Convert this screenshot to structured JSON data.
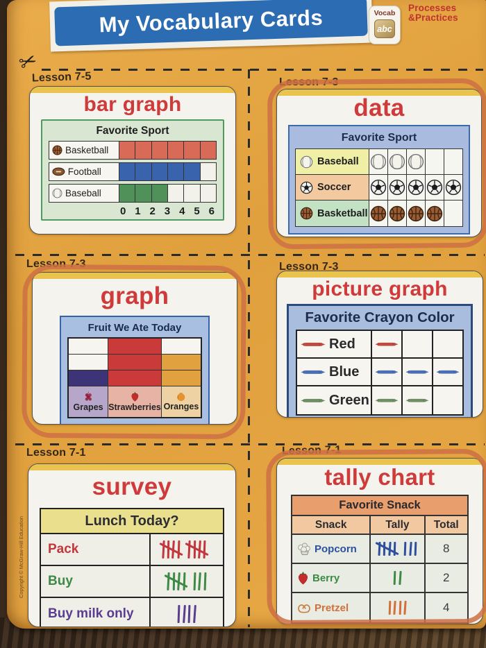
{
  "page": {
    "header": {
      "title": "My Vocabulary Cards",
      "vocab_badge": {
        "label": "Vocab",
        "tile": "abc"
      },
      "corner": {
        "line1": "Processes",
        "line2": "&Practices"
      }
    },
    "scissors_icon": "scissors-icon",
    "copyright": "Copyright © McGraw-Hill Education",
    "accent_colors": {
      "page_orange": "#e2a23f",
      "banner_blue": "#2b6cb3",
      "term_red": "#cf3a3a",
      "marker_orange": "#cd7044"
    }
  },
  "cards": [
    {
      "lesson": "Lesson 7-5",
      "term": "bar graph",
      "chart": {
        "type": "bar",
        "title": "Favorite Sport",
        "axis": [
          "0",
          "1",
          "2",
          "3",
          "4",
          "5",
          "6"
        ],
        "max": 6,
        "rows": [
          {
            "label": "Basketball",
            "icon": "basketball-icon",
            "value": 6,
            "color": "#d96a58"
          },
          {
            "label": "Football",
            "icon": "football-icon",
            "value": 5,
            "color": "#3a63ad"
          },
          {
            "label": "Baseball",
            "icon": "baseball-icon",
            "value": 3,
            "color": "#4f9159"
          }
        ]
      }
    },
    {
      "lesson": "Lesson 7-3",
      "term": "data",
      "circled": true,
      "chart": {
        "type": "pictograph",
        "title": "Favorite Sport",
        "columns": 5,
        "rows": [
          {
            "label": "Baseball",
            "icon": "baseball-icon",
            "count": 3,
            "label_bg": "#eff0a6"
          },
          {
            "label": "Soccer",
            "icon": "soccer-icon",
            "count": 5,
            "label_bg": "#f3c9a0"
          },
          {
            "label": "Basketball",
            "icon": "basketball-icon",
            "count": 4,
            "label_bg": "#c3e2c4"
          }
        ]
      }
    },
    {
      "lesson": "Lesson 7-3",
      "term": "graph",
      "circled": true,
      "chart": {
        "type": "column",
        "title": "Fruit We Ate Today",
        "max": 3,
        "columns": [
          {
            "label": "Grapes",
            "icon": "grapes-icon",
            "value": 1,
            "bar_color": "#3d3478",
            "label_bg": "#b6a6c9"
          },
          {
            "label": "Strawberries",
            "icon": "strawberry-icon",
            "value": 3,
            "bar_color": "#cb3a3a",
            "label_bg": "#e7b3a4"
          },
          {
            "label": "Oranges",
            "icon": "orange-icon",
            "value": 2,
            "bar_color": "#e0a13e",
            "label_bg": "#eed2a3"
          }
        ]
      }
    },
    {
      "lesson": "Lesson 7-3",
      "term": "picture graph",
      "chart": {
        "type": "pictograph",
        "title": "Favorite Crayon Color",
        "columns": 3,
        "rows": [
          {
            "label": "Red",
            "icon": "crayon-icon",
            "count": 1,
            "color": "#bf4a40"
          },
          {
            "label": "Blue",
            "icon": "crayon-icon",
            "count": 3,
            "color": "#4a6fb5"
          },
          {
            "label": "Green",
            "icon": "crayon-icon",
            "count": 2,
            "color": "#6d8f63"
          }
        ]
      }
    },
    {
      "lesson": "Lesson 7-1",
      "term": "survey",
      "chart": {
        "type": "tally",
        "title": "Lunch Today?",
        "rows": [
          {
            "label": "Pack",
            "tally": 10,
            "color": "#c2363c"
          },
          {
            "label": "Buy",
            "tally": 8,
            "color": "#3c8a46"
          },
          {
            "label": "Buy milk only",
            "tally": 4,
            "color": "#5a3d8e"
          }
        ]
      }
    },
    {
      "lesson": "Lesson 7-1",
      "term": "tally chart",
      "circled": true,
      "chart": {
        "type": "tally-table",
        "title": "Favorite Snack",
        "headers": [
          "Snack",
          "Tally",
          "Total"
        ],
        "rows": [
          {
            "label": "Popcorn",
            "icon": "popcorn-icon",
            "tally": 8,
            "total": "8",
            "color": "#2e4f9e"
          },
          {
            "label": "Berry",
            "icon": "strawberry-icon",
            "tally": 2,
            "total": "2",
            "color": "#3c8a46"
          },
          {
            "label": "Pretzel",
            "icon": "pretzel-icon",
            "tally": 4,
            "total": "4",
            "color": "#d0703a"
          }
        ]
      }
    }
  ],
  "chart_data": [
    {
      "type": "bar",
      "title": "Favorite Sport",
      "categories": [
        "Basketball",
        "Football",
        "Baseball"
      ],
      "values": [
        6,
        5,
        3
      ],
      "xlim": [
        0,
        6
      ]
    },
    {
      "type": "pictograph",
      "title": "Favorite Sport",
      "categories": [
        "Baseball",
        "Soccer",
        "Basketball"
      ],
      "values": [
        3,
        5,
        4
      ],
      "max_columns": 5
    },
    {
      "type": "bar",
      "title": "Fruit We Ate Today",
      "categories": [
        "Grapes",
        "Strawberries",
        "Oranges"
      ],
      "values": [
        1,
        3,
        2
      ],
      "ylim": [
        0,
        3
      ]
    },
    {
      "type": "pictograph",
      "title": "Favorite Crayon Color",
      "categories": [
        "Red",
        "Blue",
        "Green"
      ],
      "values": [
        1,
        3,
        2
      ],
      "max_columns": 3
    },
    {
      "type": "tally",
      "title": "Lunch Today?",
      "categories": [
        "Pack",
        "Buy",
        "Buy milk only"
      ],
      "values": [
        10,
        8,
        4
      ]
    },
    {
      "type": "tally",
      "title": "Favorite Snack",
      "categories": [
        "Popcorn",
        "Berry",
        "Pretzel"
      ],
      "values": [
        8,
        2,
        4
      ],
      "columns": [
        "Snack",
        "Tally",
        "Total"
      ]
    }
  ]
}
